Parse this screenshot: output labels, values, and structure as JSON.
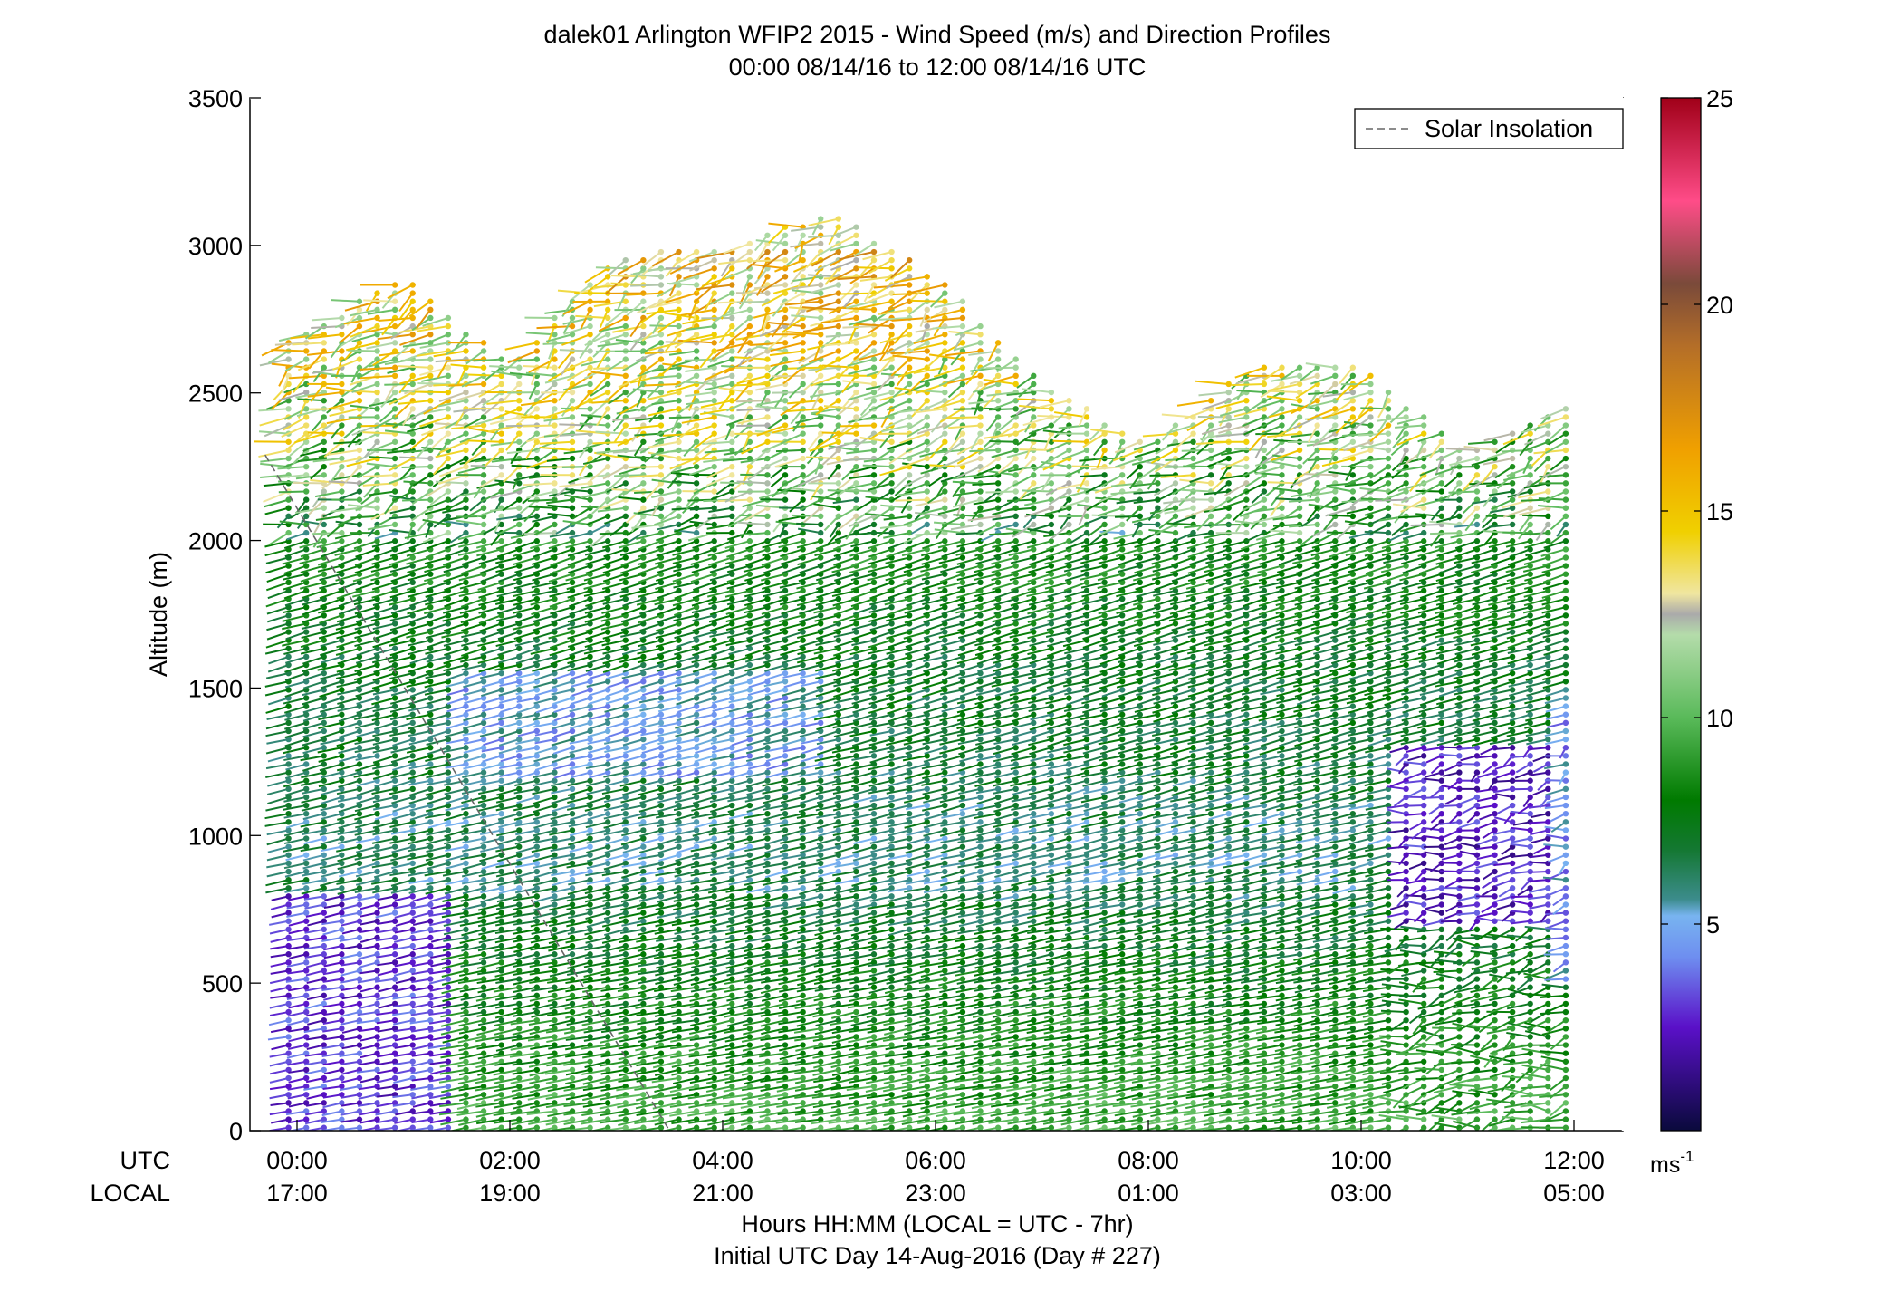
{
  "chart_data": {
    "type": "wind-barb profile",
    "title": "dalek01 Arlington WFIP2 2015 - Wind Speed (m/s) and Direction Profiles",
    "subtitle": "00:00 08/14/16 to 12:00 08/14/16  UTC",
    "ylabel": "Altitude (m)",
    "xlabel_1": "Hours HH:MM  (LOCAL = UTC - 7hr)",
    "xlabel_2": "Initial UTC Day 14-Aug-2016 (Day # 227)",
    "xrow_labels": [
      "UTC",
      "LOCAL"
    ],
    "ylim": [
      0,
      3500
    ],
    "yticks": [
      0,
      500,
      1000,
      1500,
      2000,
      2500,
      3000,
      3500
    ],
    "xlim_hours": [
      -0.25,
      12.5
    ],
    "xticks": [
      {
        "hour": 0,
        "utc": "00:00",
        "local": "17:00"
      },
      {
        "hour": 2,
        "utc": "02:00",
        "local": "19:00"
      },
      {
        "hour": 4,
        "utc": "04:00",
        "local": "21:00"
      },
      {
        "hour": 6,
        "utc": "06:00",
        "local": "23:00"
      },
      {
        "hour": 8,
        "utc": "08:00",
        "local": "01:00"
      },
      {
        "hour": 10,
        "utc": "10:00",
        "local": "03:00"
      },
      {
        "hour": 12,
        "utc": "12:00",
        "local": "05:00"
      }
    ],
    "legend": {
      "label": "Solar Insolation",
      "position": "top-right"
    },
    "solar_insolation_line": {
      "x_hours": [
        -0.3,
        3.5
      ],
      "y_m": [
        2290,
        0
      ]
    },
    "colorbar": {
      "ticks": [
        5,
        10,
        15,
        20,
        25
      ],
      "range": [
        0,
        25
      ],
      "unit_label": "ms",
      "unit_exponent": "-1",
      "stops": [
        {
          "v": 0,
          "color": "#0a0a3c"
        },
        {
          "v": 2.5,
          "color": "#5a10c8"
        },
        {
          "v": 4.2,
          "color": "#6e8ef0"
        },
        {
          "v": 5.2,
          "color": "#78b4f0"
        },
        {
          "v": 5.6,
          "color": "#3c8c8c"
        },
        {
          "v": 6.8,
          "color": "#147832"
        },
        {
          "v": 8.0,
          "color": "#007a00"
        },
        {
          "v": 10.0,
          "color": "#5aba5a"
        },
        {
          "v": 12.0,
          "color": "#b4dcaa"
        },
        {
          "v": 12.5,
          "color": "#aaaaaa"
        },
        {
          "v": 13.0,
          "color": "#f0e6a0"
        },
        {
          "v": 14.5,
          "color": "#f0d000"
        },
        {
          "v": 16.5,
          "color": "#f0a000"
        },
        {
          "v": 19.0,
          "color": "#b46e28"
        },
        {
          "v": 20.5,
          "color": "#7a4a3a"
        },
        {
          "v": 22.5,
          "color": "#ff4c88"
        },
        {
          "v": 25.0,
          "color": "#a00018"
        }
      ]
    },
    "profile_time_step_hours": 0.1667,
    "altitude_step_m": 28,
    "speed_layers": [
      {
        "alt": 0,
        "speed": 9.5
      },
      {
        "alt": 300,
        "speed": 8.5
      },
      {
        "alt": 600,
        "speed": 7.5
      },
      {
        "alt": 900,
        "speed": 6.0
      },
      {
        "alt": 1300,
        "speed": 6.8
      },
      {
        "alt": 1600,
        "speed": 7.2
      },
      {
        "alt": 2000,
        "speed": 8.5
      },
      {
        "alt": 2300,
        "speed": 11.5
      },
      {
        "alt": 2700,
        "speed": 13.5
      },
      {
        "alt": 3100,
        "speed": 15.0
      }
    ],
    "profile_top_m": [
      {
        "hour": 0,
        "top": 2690
      },
      {
        "hour": 1,
        "top": 2900
      },
      {
        "hour": 2,
        "top": 2600
      },
      {
        "hour": 3,
        "top": 2970
      },
      {
        "hour": 4,
        "top": 2990
      },
      {
        "hour": 5,
        "top": 3120
      },
      {
        "hour": 6,
        "top": 2900
      },
      {
        "hour": 7,
        "top": 2550
      },
      {
        "hour": 8,
        "top": 2320
      },
      {
        "hour": 9,
        "top": 2600
      },
      {
        "hour": 10,
        "top": 2600
      },
      {
        "hour": 11,
        "top": 2300
      },
      {
        "hour": 12,
        "top": 2460
      }
    ],
    "low_speed_regions": [
      {
        "hours": [
          -0.1,
          1.5
        ],
        "alt": [
          0,
          800
        ],
        "speed": 3.0
      },
      {
        "hours": [
          1.5,
          5.0
        ],
        "alt": [
          1200,
          1550
        ],
        "speed": 5.0
      },
      {
        "hours": [
          10.3,
          12.0
        ],
        "alt": [
          700,
          1300
        ],
        "speed": 2.5
      },
      {
        "hours": [
          11.8,
          12.0
        ],
        "alt": [
          500,
          1500
        ],
        "speed": 4.5
      }
    ]
  }
}
